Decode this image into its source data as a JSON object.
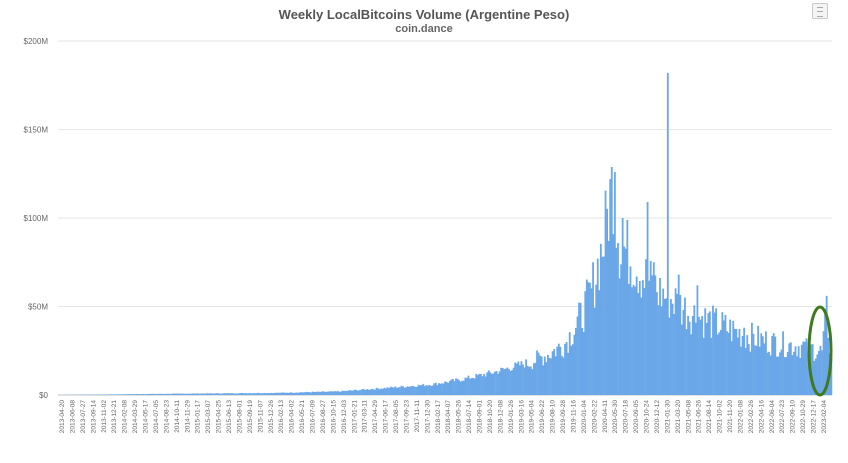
{
  "chart_data": {
    "type": "bar",
    "title": "Weekly LocalBitcoins Volume (Argentine Peso)",
    "subtitle": "coin.dance",
    "xlabel": "",
    "ylabel": "",
    "ylim": [
      0,
      200
    ],
    "y_unit": "M",
    "y_ticks": [
      "$0",
      "$50M",
      "$100M",
      "$150M",
      "$200M"
    ],
    "y_tick_values": [
      0,
      50,
      100,
      150,
      200
    ],
    "grid": "horizontal",
    "legend": "none",
    "bar_color": "#6aa7e8",
    "highlight_color": "#3f7a1c",
    "x_tick_labels": [
      "2013-04-20",
      "2013-06-08",
      "2013-07-27",
      "2013-09-14",
      "2013-11-02",
      "2013-12-21",
      "2014-02-08",
      "2014-03-29",
      "2014-05-17",
      "2014-07-05",
      "2014-08-23",
      "2014-10-11",
      "2014-11-29",
      "2015-01-17",
      "2015-03-07",
      "2015-04-25",
      "2015-06-13",
      "2015-08-01",
      "2015-09-19",
      "2015-11-07",
      "2015-12-26",
      "2016-02-13",
      "2016-04-02",
      "2016-05-21",
      "2016-07-09",
      "2016-08-27",
      "2016-10-15",
      "2016-12-03",
      "2017-01-21",
      "2017-03-11",
      "2017-04-29",
      "2017-06-17",
      "2017-08-05",
      "2017-09-23",
      "2017-11-11",
      "2017-12-30",
      "2018-02-17",
      "2018-04-07",
      "2018-05-26",
      "2018-07-14",
      "2018-09-01",
      "2018-10-20",
      "2018-12-08",
      "2019-01-26",
      "2019-03-16",
      "2019-05-04",
      "2019-06-22",
      "2019-08-10",
      "2019-09-28",
      "2019-11-16",
      "2020-01-04",
      "2020-02-22",
      "2020-04-11",
      "2020-05-30",
      "2020-07-18",
      "2020-09-05",
      "2020-10-24",
      "2020-12-12",
      "2021-01-30",
      "2021-03-20",
      "2021-05-08",
      "2021-06-26",
      "2021-08-14",
      "2021-10-02",
      "2021-11-20",
      "2022-01-08",
      "2022-02-26",
      "2022-04-16",
      "2022-06-04",
      "2022-07-23",
      "2022-09-10",
      "2022-10-29",
      "2022-12-17",
      "2023-02-04"
    ],
    "anchors": [
      [
        0,
        0.0
      ],
      [
        20,
        0.2
      ],
      [
        60,
        0.6
      ],
      [
        100,
        0.9
      ],
      [
        140,
        1.2
      ],
      [
        180,
        2.0
      ],
      [
        210,
        4.0
      ],
      [
        240,
        6.0
      ],
      [
        260,
        9.0
      ],
      [
        280,
        13.0
      ],
      [
        300,
        18.0
      ],
      [
        315,
        24.0
      ],
      [
        325,
        30.0
      ],
      [
        335,
        45.0
      ],
      [
        342,
        60.0
      ],
      [
        346,
        75.0
      ],
      [
        350,
        90.0
      ],
      [
        353,
        110.0
      ],
      [
        356,
        125.0
      ],
      [
        360,
        88.0
      ],
      [
        368,
        80.0
      ],
      [
        375,
        70.0
      ],
      [
        385,
        60.0
      ],
      [
        395,
        55.0
      ],
      [
        405,
        48.0
      ],
      [
        420,
        42.0
      ],
      [
        440,
        35.0
      ],
      [
        460,
        30.0
      ],
      [
        480,
        28.0
      ],
      [
        490,
        25.0
      ],
      [
        493,
        48.0
      ],
      [
        496,
        20.0
      ]
    ],
    "spikes": [
      [
        357,
        126.0
      ],
      [
        362,
        100.0
      ],
      [
        378,
        109.0
      ],
      [
        391,
        182.0
      ],
      [
        382,
        75.0
      ],
      [
        398,
        68.0
      ],
      [
        410,
        62.0
      ],
      [
        440,
        38.0
      ],
      [
        460,
        33.0
      ],
      [
        480,
        32.0
      ]
    ],
    "n_bars": 497
  }
}
